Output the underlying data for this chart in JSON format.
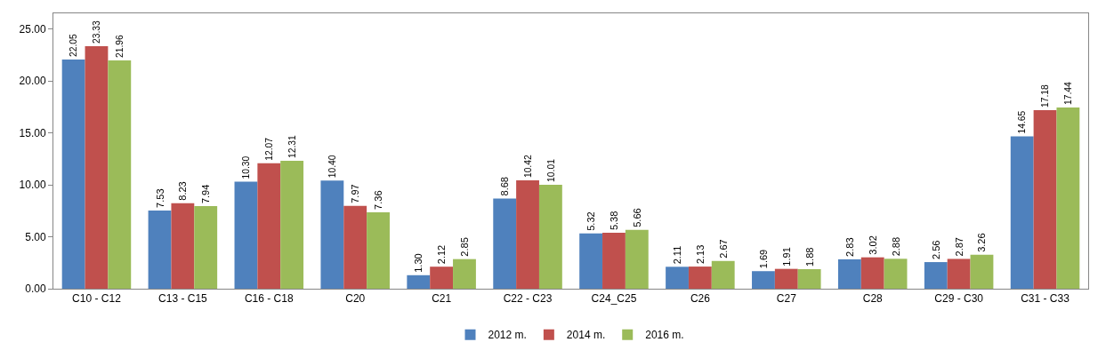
{
  "chart_data": {
    "type": "bar",
    "categories": [
      "C10 - C12",
      "C13 - C15",
      "C16 - C18",
      "C20",
      "C21",
      "C22 - C23",
      "C24_C25",
      "C26",
      "C27",
      "C28",
      "C29 - C30",
      "C31 - C33"
    ],
    "series": [
      {
        "name": "2012 m.",
        "color": "#4f81bd",
        "values": [
          22.05,
          7.53,
          10.3,
          10.4,
          1.3,
          8.68,
          5.32,
          2.11,
          1.69,
          2.83,
          2.56,
          14.65
        ],
        "value_labels": [
          "22.05",
          "7.53",
          "10.30",
          "10.40",
          "1.30",
          "8.68",
          "5.32",
          "2.11",
          "1.69",
          "2.83",
          "2.56",
          "14.65"
        ]
      },
      {
        "name": "2014 m.",
        "color": "#c0504d",
        "values": [
          23.33,
          8.23,
          12.07,
          7.97,
          2.12,
          10.42,
          5.38,
          2.13,
          1.91,
          3.02,
          2.87,
          17.18
        ],
        "value_labels": [
          "23.33",
          "8.23",
          "12.07",
          "7.97",
          "2.12",
          "10.42",
          "5.38",
          "2.13",
          "1.91",
          "3.02",
          "2.87",
          "17.18"
        ]
      },
      {
        "name": "2016 m.",
        "color": "#9bbb59",
        "values": [
          21.96,
          7.94,
          12.31,
          7.36,
          2.85,
          10.01,
          5.66,
          2.67,
          1.88,
          2.88,
          3.26,
          17.44
        ],
        "value_labels": [
          "21.96",
          "7.94",
          "12.31",
          "7.36",
          "2.85",
          "10.01",
          "5.66",
          "2.67",
          "1.88",
          "2.88",
          "3.26",
          "17.44"
        ]
      }
    ],
    "ylim": [
      0,
      26.5
    ],
    "yticks": [
      {
        "value": 0,
        "label": "0.00"
      },
      {
        "value": 5,
        "label": "5.00"
      },
      {
        "value": 10,
        "label": "10.00"
      },
      {
        "value": 15,
        "label": "15.00"
      },
      {
        "value": 20,
        "label": "20.00"
      },
      {
        "value": 25,
        "label": "25.00"
      }
    ],
    "legend": "bottom"
  }
}
